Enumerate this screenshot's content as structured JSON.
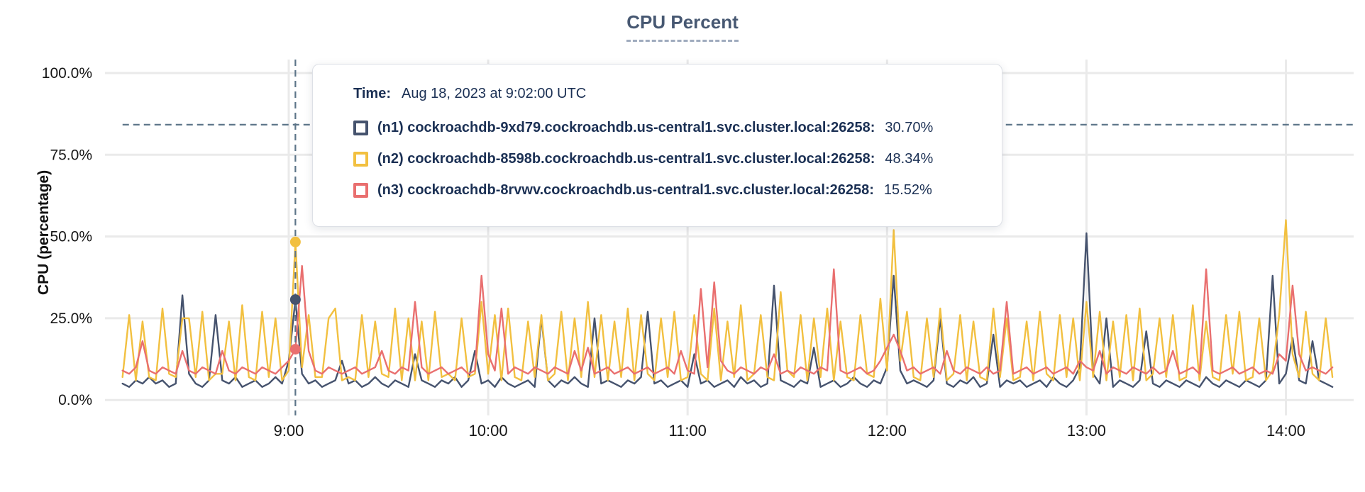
{
  "title": "CPU Percent",
  "y_axis_title": "CPU (percentage)",
  "tooltip": {
    "time_label": "Time:",
    "time_value": "Aug 18, 2023 at 9:02:00 UTC",
    "rows": [
      {
        "label": "(n1) cockroachdb-9xd79.cockroachdb.us-central1.svc.cluster.local:26258:",
        "value": "30.70%",
        "color": "#46536e"
      },
      {
        "label": "(n2) cockroachdb-8598b.cockroachdb.us-central1.svc.cluster.local:26258:",
        "value": "48.34%",
        "color": "#f2c040"
      },
      {
        "label": "(n3) cockroachdb-8rvwv.cockroachdb.us-central1.svc.cluster.local:26258:",
        "value": "15.52%",
        "color": "#e96f6f"
      }
    ]
  },
  "colors": {
    "grid": "#eaeaea",
    "dashed_guides": "#5d7589",
    "title": "#475872",
    "tooltip_text": "#1b3054",
    "axis_text": "#161616",
    "n1": "#46536e",
    "n2": "#f2c040",
    "n3": "#e96f6f"
  },
  "chart_data": {
    "type": "line",
    "title": "CPU Percent",
    "ylabel": "CPU (percentage)",
    "ylim": [
      0,
      100
    ],
    "grid": true,
    "y_ticks": [
      {
        "pct": 0,
        "label": "0.0%"
      },
      {
        "pct": 25,
        "label": "25.0%"
      },
      {
        "pct": 50,
        "label": "50.0%"
      },
      {
        "pct": 75,
        "label": "75.0%"
      },
      {
        "pct": 100,
        "label": "100.0%"
      }
    ],
    "x_ticks": [
      {
        "hour": 9,
        "label": "9:00"
      },
      {
        "hour": 10,
        "label": "10:00"
      },
      {
        "hour": 11,
        "label": "11:00"
      },
      {
        "hour": 12,
        "label": "12:00"
      },
      {
        "hour": 13,
        "label": "13:00"
      },
      {
        "hour": 14,
        "label": "14:00"
      }
    ],
    "threshold_pct": 84.2,
    "crosshair": {
      "time_min_after_8": 62,
      "hover_time": "9:02:00 UTC",
      "point_values": [
        30.7,
        48.34,
        15.52
      ]
    },
    "sampling": {
      "start_min_after_8": 10,
      "step_min": 2
    },
    "series": [
      {
        "name": "n1",
        "host": "cockroachdb-9xd79.cockroachdb.us-central1.svc.cluster.local:26258",
        "color": "#46536e",
        "values": [
          5,
          4,
          6,
          5,
          7,
          5,
          6,
          4,
          5,
          32,
          8,
          5,
          4,
          6,
          26,
          6,
          5,
          7,
          4,
          5,
          6,
          4,
          5,
          7,
          5,
          12,
          30.7,
          8,
          5,
          6,
          4,
          5,
          6,
          12,
          5,
          6,
          4,
          5,
          7,
          5,
          4,
          6,
          5,
          4,
          14,
          6,
          5,
          4,
          6,
          5,
          7,
          4,
          6,
          15,
          5,
          6,
          4,
          7,
          5,
          4,
          5,
          6,
          4,
          25,
          6,
          4,
          6,
          5,
          7,
          5,
          4,
          25,
          5,
          6,
          5,
          4,
          6,
          5,
          7,
          27,
          5,
          6,
          4,
          5,
          6,
          4,
          14,
          5,
          6,
          4,
          5,
          6,
          4,
          7,
          5,
          6,
          4,
          5,
          35,
          6,
          5,
          4,
          6,
          5,
          16,
          4,
          5,
          6,
          4,
          5,
          7,
          5,
          4,
          6,
          5,
          10,
          38,
          9,
          5,
          6,
          5,
          4,
          6,
          25,
          5,
          4,
          6,
          5,
          7,
          4,
          5,
          20,
          4,
          6,
          5,
          6,
          4,
          5,
          6,
          4,
          7,
          5,
          4,
          6,
          10,
          51,
          8,
          5,
          25,
          4,
          6,
          5,
          4,
          6,
          21,
          5,
          4,
          6,
          5,
          4,
          6,
          5,
          4,
          7,
          5,
          4,
          6,
          5,
          4,
          6,
          5,
          4,
          6,
          38,
          5,
          8,
          19,
          6,
          5,
          18,
          6,
          5,
          4
        ]
      },
      {
        "name": "n2",
        "host": "cockroachdb-8598b.cockroachdb.us-central1.svc.cluster.local:26258",
        "color": "#f2c040",
        "values": [
          7,
          26,
          6,
          24,
          7,
          6,
          28,
          8,
          7,
          25,
          25,
          7,
          27,
          6,
          8,
          8,
          24,
          6,
          29,
          7,
          6,
          27,
          7,
          25,
          6,
          9,
          48.3,
          10,
          26,
          7,
          7,
          25,
          28,
          6,
          7,
          6,
          26,
          7,
          24,
          8,
          7,
          28,
          6,
          25,
          6,
          24,
          6,
          27,
          7,
          8,
          6,
          25,
          7,
          8,
          30,
          8,
          26,
          6,
          28,
          7,
          6,
          24,
          7,
          26,
          6,
          8,
          27,
          6,
          25,
          7,
          30,
          7,
          26,
          6,
          24,
          7,
          28,
          6,
          26,
          8,
          6,
          25,
          7,
          27,
          6,
          7,
          26,
          8,
          6,
          28,
          6,
          24,
          7,
          29,
          6,
          8,
          26,
          7,
          6,
          33,
          9,
          7,
          26,
          6,
          25,
          7,
          28,
          6,
          24,
          7,
          6,
          26,
          8,
          7,
          31,
          9,
          52,
          12,
          27,
          7,
          6,
          25,
          7,
          28,
          6,
          8,
          26,
          6,
          24,
          7,
          6,
          28,
          7,
          25,
          6,
          7,
          24,
          6,
          27,
          8,
          6,
          26,
          7,
          25,
          6,
          30,
          7,
          27,
          6,
          24,
          7,
          26,
          6,
          28,
          6,
          8,
          25,
          7,
          26,
          6,
          7,
          29,
          6,
          24,
          7,
          6,
          26,
          8,
          27,
          6,
          7,
          25,
          6,
          9,
          26,
          55,
          14,
          7,
          27,
          8,
          6,
          25,
          7
        ]
      },
      {
        "name": "n3",
        "host": "cockroachdb-8rvwv.cockroachdb.us-central1.svc.cluster.local:26258",
        "color": "#e96f6f",
        "values": [
          9,
          8,
          10,
          18,
          9,
          8,
          10,
          9,
          8,
          15,
          9,
          8,
          10,
          9,
          8,
          15,
          9,
          8,
          10,
          9,
          8,
          10,
          9,
          8,
          10,
          12,
          15.5,
          41,
          15,
          9,
          8,
          10,
          9,
          8,
          9,
          10,
          8,
          9,
          10,
          15,
          9,
          8,
          10,
          9,
          30,
          10,
          8,
          9,
          10,
          8,
          9,
          10,
          8,
          9,
          38,
          14,
          9,
          28,
          8,
          10,
          9,
          8,
          10,
          9,
          8,
          10,
          9,
          8,
          15,
          9,
          16,
          8,
          9,
          10,
          8,
          9,
          10,
          8,
          9,
          10,
          8,
          9,
          10,
          8,
          15,
          9,
          8,
          34,
          10,
          36,
          12,
          9,
          8,
          10,
          9,
          8,
          10,
          9,
          14,
          8,
          9,
          8,
          10,
          9,
          8,
          10,
          9,
          40,
          9,
          8,
          9,
          10,
          8,
          9,
          12,
          16,
          20,
          15,
          9,
          10,
          8,
          9,
          10,
          8,
          15,
          9,
          8,
          10,
          9,
          8,
          10,
          8,
          9,
          30,
          8,
          9,
          10,
          8,
          9,
          10,
          8,
          9,
          10,
          8,
          12,
          10,
          9,
          15,
          8,
          10,
          9,
          8,
          10,
          9,
          8,
          10,
          8,
          9,
          15,
          8,
          9,
          10,
          8,
          40,
          9,
          8,
          9,
          10,
          8,
          9,
          10,
          8,
          9,
          8,
          14,
          12,
          35,
          14,
          9,
          10,
          9,
          8,
          10
        ]
      }
    ]
  }
}
